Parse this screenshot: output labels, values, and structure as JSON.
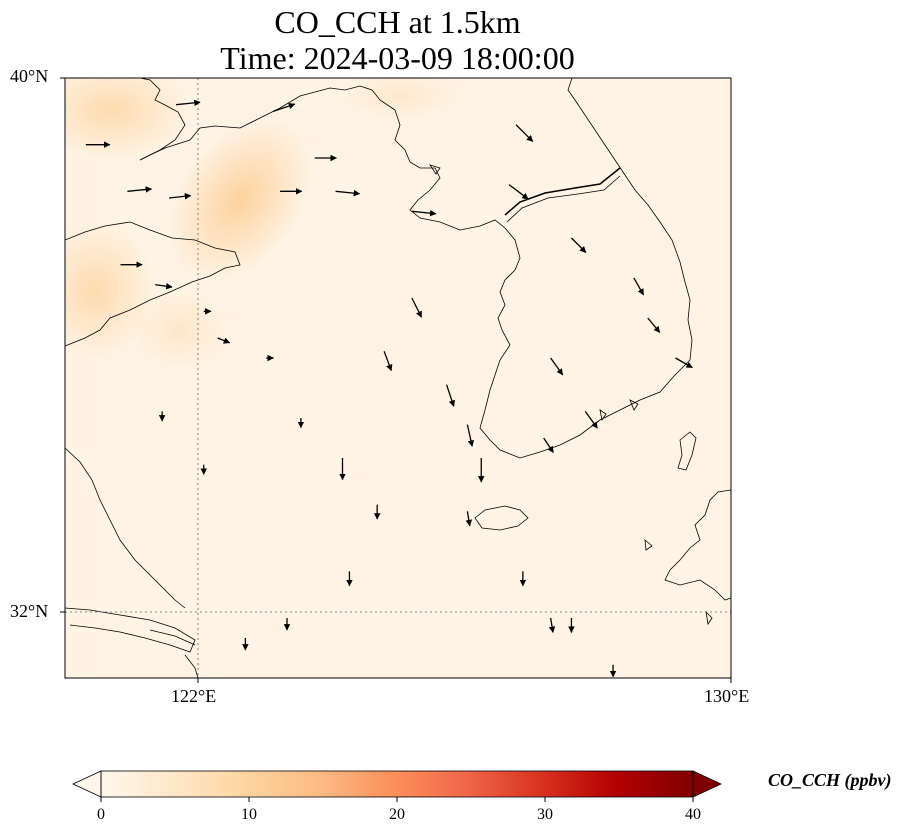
{
  "title": {
    "line1": "CO_CCH at 1.5km",
    "line2": "Time: 2024-03-09 18:00:00"
  },
  "axes": {
    "lat_labels": [
      "40°N",
      "32°N"
    ],
    "lon_labels": [
      "122°E",
      "130°E"
    ],
    "lon_range": [
      120.4,
      130
    ],
    "lat_range": [
      31,
      40
    ]
  },
  "colorbar": {
    "label": "CO_CCH (ppbv)",
    "ticks": [
      "0",
      "10",
      "20",
      "30",
      "40"
    ],
    "range": [
      0,
      40
    ],
    "extend": "both",
    "colormap": [
      "#fff7ec",
      "#fee8c8",
      "#fdd49e",
      "#fdbb84",
      "#fc8d59",
      "#ef6548",
      "#d7301f",
      "#b30000",
      "#7f0000"
    ]
  },
  "field": {
    "description_colors": {
      "background": "#fef3e4",
      "plume": "#fdd9a8",
      "plume_light": "#fde6c6"
    }
  },
  "wind_vectors": [
    {
      "lon": 120.7,
      "lat": 39.0,
      "u": 1.0,
      "v": 0.0
    },
    {
      "lon": 121.3,
      "lat": 38.3,
      "u": 1.0,
      "v": 0.1
    },
    {
      "lon": 121.9,
      "lat": 38.2,
      "u": 0.9,
      "v": 0.1
    },
    {
      "lon": 122.0,
      "lat": 39.6,
      "u": 1.0,
      "v": 0.1
    },
    {
      "lon": 123.4,
      "lat": 39.5,
      "u": 0.9,
      "v": 0.3
    },
    {
      "lon": 124.0,
      "lat": 38.8,
      "u": 0.9,
      "v": 0.0
    },
    {
      "lon": 123.5,
      "lat": 38.3,
      "u": 0.9,
      "v": 0.0
    },
    {
      "lon": 124.3,
      "lat": 38.3,
      "u": 1.0,
      "v": -0.1
    },
    {
      "lon": 125.4,
      "lat": 38.0,
      "u": 1.0,
      "v": -0.1
    },
    {
      "lon": 126.9,
      "lat": 39.3,
      "u": 0.7,
      "v": -0.7
    },
    {
      "lon": 126.8,
      "lat": 38.4,
      "u": 0.8,
      "v": -0.6
    },
    {
      "lon": 127.7,
      "lat": 37.6,
      "u": 0.6,
      "v": -0.6
    },
    {
      "lon": 128.6,
      "lat": 37.0,
      "u": 0.4,
      "v": -0.7
    },
    {
      "lon": 128.8,
      "lat": 36.4,
      "u": 0.5,
      "v": -0.6
    },
    {
      "lon": 129.2,
      "lat": 35.8,
      "u": 0.7,
      "v": -0.4
    },
    {
      "lon": 127.4,
      "lat": 35.8,
      "u": 0.5,
      "v": -0.7
    },
    {
      "lon": 126.2,
      "lat": 34.8,
      "u": 0.2,
      "v": -0.9
    },
    {
      "lon": 126.4,
      "lat": 34.3,
      "u": 0.0,
      "v": -1.0
    },
    {
      "lon": 125.9,
      "lat": 35.4,
      "u": 0.3,
      "v": -0.9
    },
    {
      "lon": 125.4,
      "lat": 36.7,
      "u": 0.4,
      "v": -0.8
    },
    {
      "lon": 125.0,
      "lat": 35.9,
      "u": 0.3,
      "v": -0.8
    },
    {
      "lon": 127.9,
      "lat": 35.0,
      "u": 0.5,
      "v": -0.7
    },
    {
      "lon": 127.3,
      "lat": 34.6,
      "u": 0.4,
      "v": -0.6
    },
    {
      "lon": 124.4,
      "lat": 34.3,
      "u": 0.0,
      "v": -0.9
    },
    {
      "lon": 124.9,
      "lat": 33.6,
      "u": 0.0,
      "v": -0.6
    },
    {
      "lon": 124.5,
      "lat": 32.6,
      "u": 0.0,
      "v": -0.6
    },
    {
      "lon": 126.2,
      "lat": 33.5,
      "u": 0.1,
      "v": -0.6
    },
    {
      "lon": 127.0,
      "lat": 32.6,
      "u": 0.0,
      "v": -0.6
    },
    {
      "lon": 127.4,
      "lat": 31.9,
      "u": 0.1,
      "v": -0.6
    },
    {
      "lon": 127.7,
      "lat": 31.9,
      "u": 0.0,
      "v": -0.6
    },
    {
      "lon": 123.6,
      "lat": 31.9,
      "u": 0.0,
      "v": -0.5
    },
    {
      "lon": 123.0,
      "lat": 31.6,
      "u": 0.0,
      "v": -0.5
    },
    {
      "lon": 128.3,
      "lat": 31.2,
      "u": 0.0,
      "v": -0.5
    },
    {
      "lon": 122.4,
      "lat": 34.2,
      "u": 0.0,
      "v": -0.4
    },
    {
      "lon": 123.8,
      "lat": 34.9,
      "u": 0.0,
      "v": -0.4
    },
    {
      "lon": 122.6,
      "lat": 36.1,
      "u": 0.5,
      "v": -0.2
    },
    {
      "lon": 121.7,
      "lat": 36.9,
      "u": 0.7,
      "v": -0.1
    },
    {
      "lon": 121.2,
      "lat": 37.2,
      "u": 0.9,
      "v": 0.0
    },
    {
      "lon": 122.4,
      "lat": 36.5,
      "u": 0.3,
      "v": 0.0
    },
    {
      "lon": 123.3,
      "lat": 35.8,
      "u": 0.3,
      "v": 0.0
    },
    {
      "lon": 121.8,
      "lat": 35.0,
      "u": 0.0,
      "v": -0.4
    }
  ]
}
